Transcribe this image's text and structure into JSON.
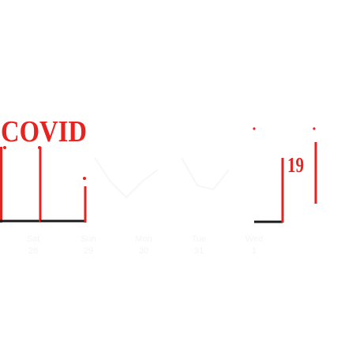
{
  "logo": {
    "word": "COVID",
    "number": "19",
    "accent_color": "#e8231f",
    "stroke_color": "#e8231f"
  },
  "calendar": {
    "days": [
      {
        "name": "Sat",
        "date": "28"
      },
      {
        "name": "Sun",
        "date": "29"
      },
      {
        "name": "Mon",
        "date": "30"
      },
      {
        "name": "Tue",
        "date": "31"
      },
      {
        "name": "Wed",
        "date": "1"
      }
    ]
  }
}
